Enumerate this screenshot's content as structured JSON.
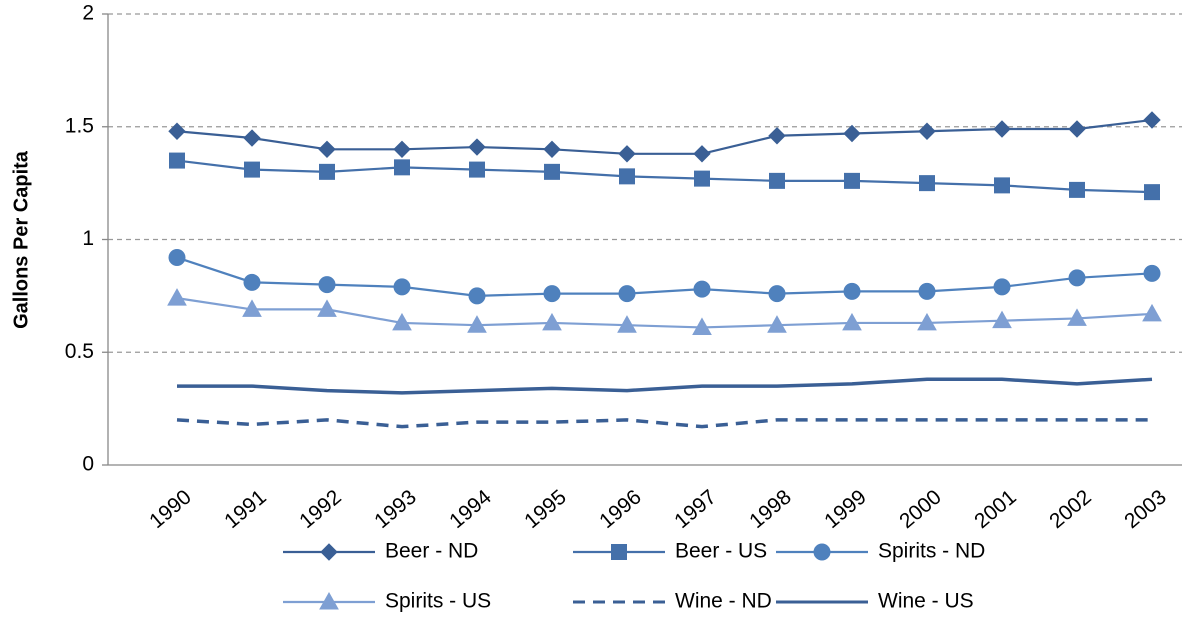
{
  "chart_data": {
    "type": "line",
    "y_label": "Gallons Per Capita",
    "categories": [
      "1990",
      "1991",
      "1992",
      "1993",
      "1994",
      "1995",
      "1996",
      "1997",
      "1998",
      "1999",
      "2000",
      "2001",
      "2002",
      "2003"
    ],
    "series": [
      {
        "name": "Beer - ND",
        "color": "#3a5f95",
        "marker": "diamond",
        "dash": false,
        "values": [
          1.48,
          1.45,
          1.4,
          1.4,
          1.41,
          1.4,
          1.38,
          1.38,
          1.46,
          1.47,
          1.48,
          1.49,
          1.49,
          1.53
        ]
      },
      {
        "name": "Beer - US",
        "color": "#4470aa",
        "marker": "square",
        "dash": false,
        "values": [
          1.35,
          1.31,
          1.3,
          1.32,
          1.31,
          1.3,
          1.28,
          1.27,
          1.26,
          1.26,
          1.25,
          1.24,
          1.22,
          1.21
        ]
      },
      {
        "name": "Spirits - ND",
        "color": "#4f81bd",
        "marker": "circle",
        "dash": false,
        "values": [
          0.92,
          0.81,
          0.8,
          0.79,
          0.75,
          0.76,
          0.76,
          0.78,
          0.76,
          0.77,
          0.77,
          0.79,
          0.83,
          0.85
        ]
      },
      {
        "name": "Spirits - US",
        "color": "#7e9fd3",
        "marker": "triangle",
        "dash": false,
        "values": [
          0.74,
          0.69,
          0.69,
          0.63,
          0.62,
          0.63,
          0.62,
          0.61,
          0.62,
          0.63,
          0.63,
          0.64,
          0.65,
          0.67
        ]
      },
      {
        "name": "Wine - ND",
        "color": "#3a5f95",
        "marker": "none",
        "dash": true,
        "values": [
          0.2,
          0.18,
          0.2,
          0.17,
          0.19,
          0.19,
          0.2,
          0.17,
          0.2,
          0.2,
          0.2,
          0.2,
          0.2,
          0.2
        ]
      },
      {
        "name": "Wine - US",
        "color": "#3a5f95",
        "marker": "none",
        "dash": false,
        "values": [
          0.35,
          0.35,
          0.33,
          0.32,
          0.33,
          0.34,
          0.33,
          0.35,
          0.35,
          0.36,
          0.38,
          0.38,
          0.36,
          0.38
        ]
      }
    ],
    "ylim": [
      0,
      2
    ],
    "yticks": [
      0,
      0.5,
      1,
      1.5,
      2
    ],
    "grid": true,
    "legend": "bottom"
  }
}
